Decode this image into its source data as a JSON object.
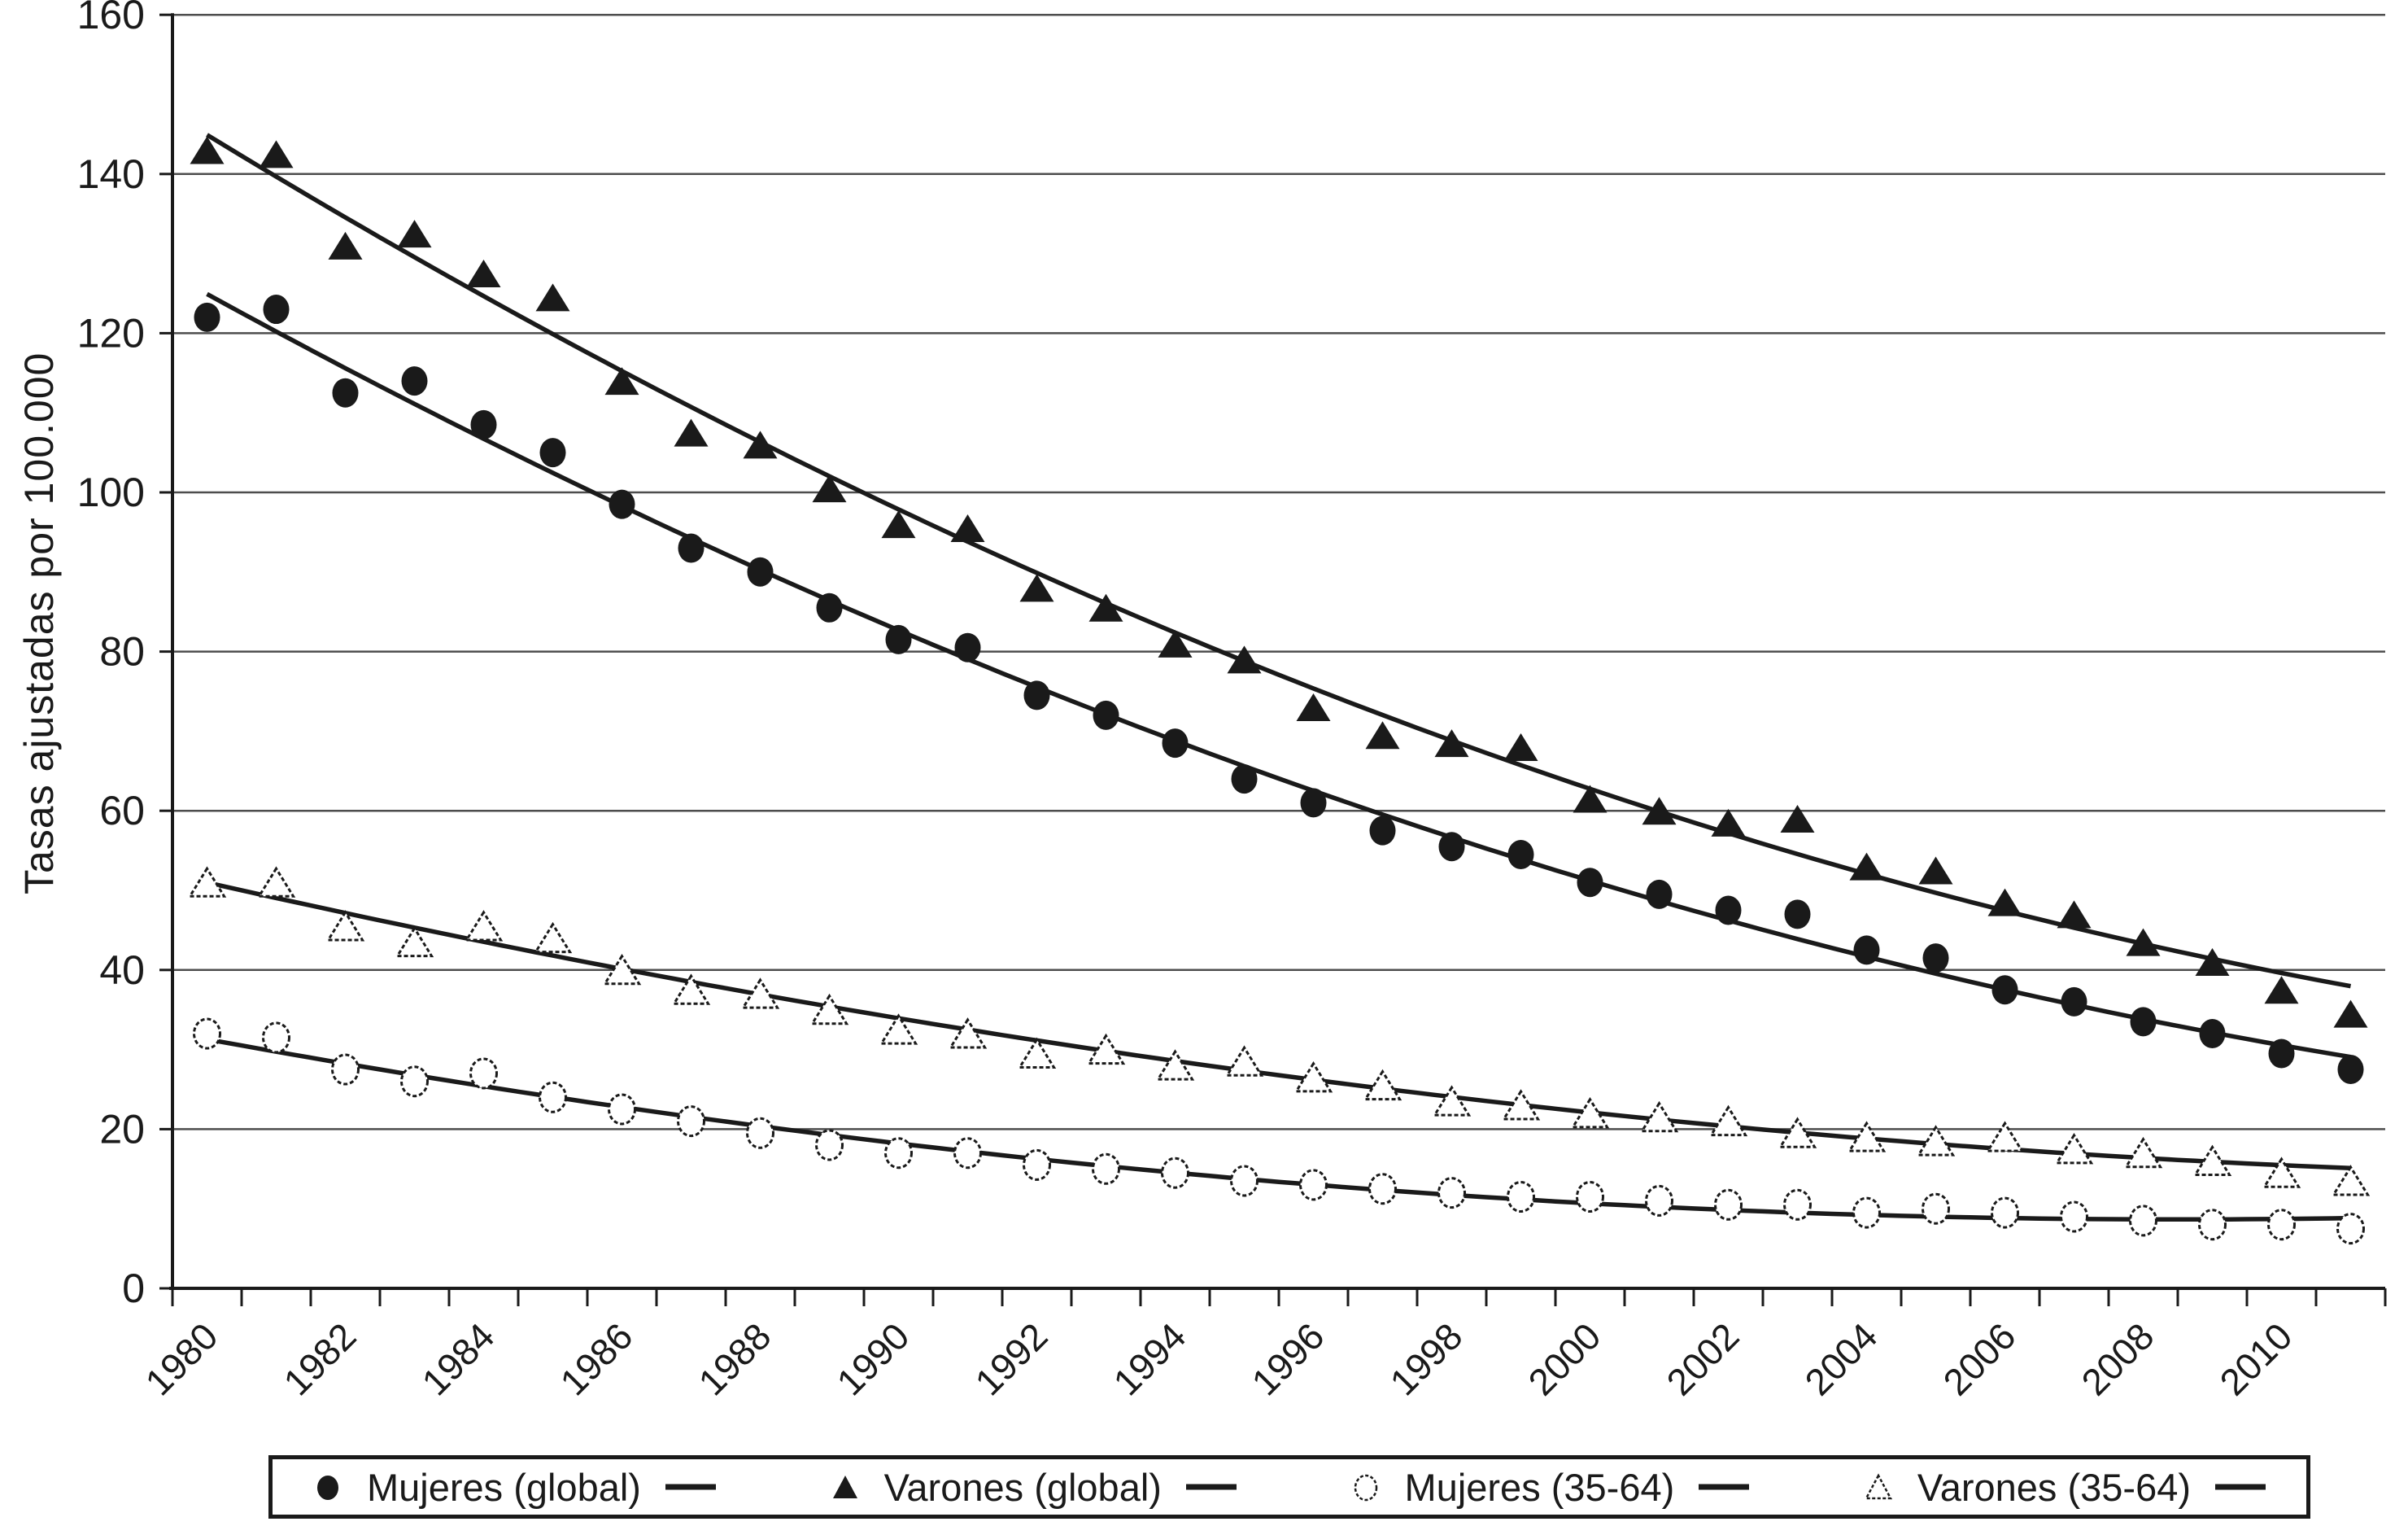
{
  "figure": {
    "background": "#ffffff",
    "ink_color": "#1a1a1a",
    "grid_color": "#4d4d4d"
  },
  "chart_data": {
    "type": "scatter",
    "title": "",
    "xlabel": "",
    "ylabel": "Tasas ajustadas por 100.000",
    "ylim": [
      0,
      160
    ],
    "y_tick_step": 20,
    "grid": "horizontal",
    "legend_position": "bottom",
    "years": [
      1980,
      1981,
      1982,
      1983,
      1984,
      1985,
      1986,
      1987,
      1988,
      1989,
      1990,
      1991,
      1992,
      1993,
      1994,
      1995,
      1996,
      1997,
      1998,
      1999,
      2000,
      2001,
      2002,
      2003,
      2004,
      2005,
      2006,
      2007,
      2008,
      2009,
      2010,
      2011
    ],
    "x_tick_labels": [
      "1980",
      "1982",
      "1984",
      "1986",
      "1988",
      "1990",
      "1992",
      "1994",
      "1996",
      "1998",
      "2000",
      "2002",
      "2004",
      "2006",
      "2008",
      "2010"
    ],
    "series": [
      {
        "name": "Mujeres (global)",
        "marker": "circle",
        "fill": "filled",
        "trend": "quadratic",
        "values": [
          122,
          123,
          112.5,
          114,
          108.5,
          105,
          98.5,
          93,
          90,
          85.5,
          81.5,
          80.5,
          74.5,
          72,
          68.5,
          64,
          61,
          57.5,
          55.5,
          54.5,
          51,
          49.5,
          47.5,
          47,
          42.5,
          41.5,
          37.5,
          36,
          33.5,
          32,
          29.5,
          27.5
        ]
      },
      {
        "name": "Varones (global)",
        "marker": "triangle",
        "fill": "filled",
        "trend": "quadratic",
        "values": [
          143,
          142.5,
          131,
          132.5,
          127.5,
          124.5,
          114,
          107.5,
          106,
          100.5,
          96,
          95.5,
          88,
          85.5,
          81,
          79,
          73,
          69.5,
          68.5,
          68,
          61.5,
          60,
          58.5,
          59,
          53,
          52.5,
          48.5,
          47,
          43.5,
          41,
          37.5,
          34.5
        ]
      },
      {
        "name": "Mujeres (35-64)",
        "marker": "circle",
        "fill": "open",
        "trend": "quadratic",
        "values": [
          32,
          31.5,
          27.5,
          26,
          27,
          24,
          22.5,
          21,
          19.5,
          18,
          17,
          17,
          15.5,
          15,
          14.5,
          13.5,
          13,
          12.5,
          12,
          11.5,
          11.5,
          11,
          10.5,
          10.5,
          9.5,
          10,
          9.5,
          9,
          8.5,
          8,
          8,
          7.5
        ]
      },
      {
        "name": "Varones (35-64)",
        "marker": "triangle",
        "fill": "open",
        "trend": "quadratic",
        "values": [
          51,
          51,
          45.5,
          43.5,
          45.5,
          44,
          40,
          37.5,
          37,
          35,
          32.5,
          32,
          29.5,
          30,
          28,
          28.5,
          26.5,
          25.5,
          23.5,
          23,
          22,
          21.5,
          21,
          19.5,
          19,
          18.5,
          19,
          17.5,
          17,
          16,
          14.5,
          13.5
        ]
      }
    ]
  }
}
